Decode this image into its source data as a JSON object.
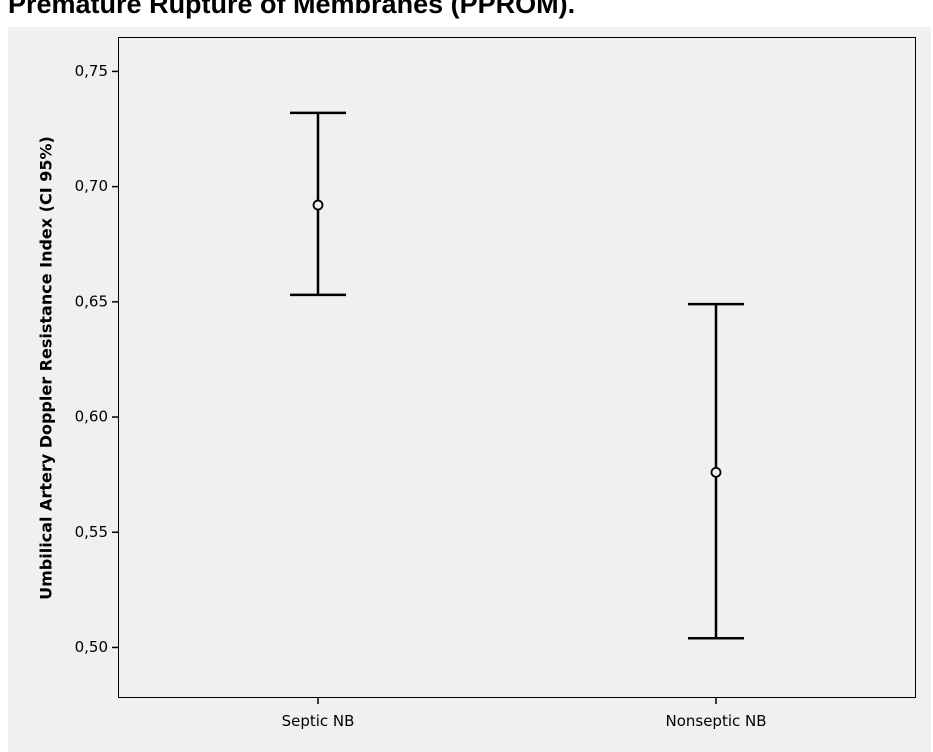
{
  "chart_data": {
    "type": "errorbar",
    "title": "Premature Rupture of Membranes (PPROM).",
    "ylabel": "Umbilical Artery Doppler Resistance Index (CI 95%)",
    "xlabel": "",
    "categories": [
      "Septic NB",
      "Nonseptic NB"
    ],
    "series": [
      {
        "means": [
          0.692,
          0.576
        ],
        "ci_lower": [
          0.653,
          0.504
        ],
        "ci_upper": [
          0.732,
          0.649
        ]
      }
    ],
    "yticks": [
      "0,50",
      "0,55",
      "0,60",
      "0,65",
      "0,70",
      "0,75"
    ],
    "ylim": [
      0.4785,
      0.7645
    ],
    "grid": false,
    "legend": "none"
  },
  "colors": {
    "plot_background": "#f0f0f0",
    "ink": "#000000"
  }
}
